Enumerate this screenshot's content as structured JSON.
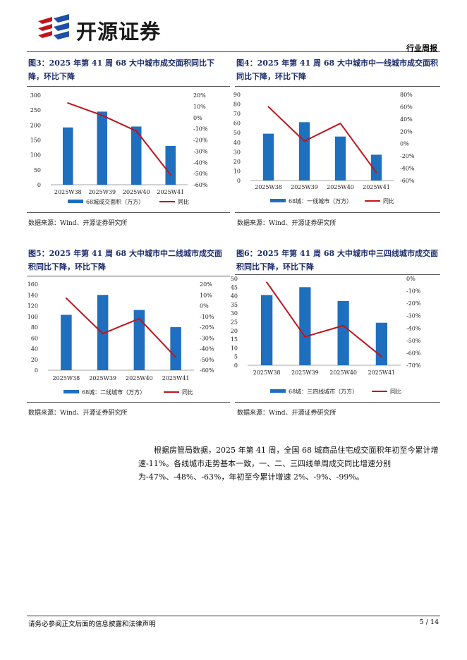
{
  "header": {
    "logo_text": "开源证券",
    "report_type": "行业周报"
  },
  "colors": {
    "bar": "#1f6fbf",
    "line": "#c0141c",
    "title": "#1b2b6b"
  },
  "charts": [
    {
      "figure_title": "图3：2025 年第 41 周 68 大中城市成交面积同比下降，环比下降",
      "source": "数据来源：Wind、开源证券研究所",
      "bar_legend": "68城成交面积（万方）",
      "line_legend": "同比"
    },
    {
      "figure_title": "图4：2025 年第 41 周 68 大中城市中一线城市成交面积同比下降，环比下降",
      "source": "数据来源：Wind、开源证券研究所",
      "bar_legend": "68城：一线城市（万方）",
      "line_legend": "同比"
    },
    {
      "figure_title": "图5：2025 年第 41 周 68 大中城市中二线城市成交面积同比下降，环比下降",
      "source": "数据来源：Wind、开源证券研究所",
      "bar_legend": "68城：二线城市（万方）",
      "line_legend": "同比"
    },
    {
      "figure_title": "图6：2025 年第 41 周 68 大中城市中三四线城市成交面积同比下降，环比下降",
      "source": "数据来源：Wind、开源证券研究所",
      "bar_legend": "68城：三四线城市（万方）",
      "line_legend": "同比"
    }
  ],
  "chart_data": [
    {
      "type": "bar",
      "categories": [
        "2025W38",
        "2025W39",
        "2025W40",
        "2025W41"
      ],
      "series": [
        {
          "name": "68城成交面积（万方）",
          "type": "bar",
          "axis": "left",
          "values": [
            192,
            245,
            195,
            130
          ]
        },
        {
          "name": "同比",
          "type": "line",
          "axis": "right",
          "values": [
            13,
            2,
            -12,
            -51
          ]
        }
      ],
      "ylim": [
        0,
        300
      ],
      "yticks": [
        "0",
        "50",
        "100",
        "150",
        "200",
        "250",
        "300"
      ],
      "y2lim": [
        -60,
        20
      ],
      "y2ticks": [
        "-60%",
        "-50%",
        "-40%",
        "-30%",
        "-20%",
        "-10%",
        "0%",
        "10%",
        "20%"
      ]
    },
    {
      "type": "bar",
      "categories": [
        "2025W38",
        "2025W39",
        "2025W40",
        "2025W41"
      ],
      "series": [
        {
          "name": "68城：一线城市（万方）",
          "type": "bar",
          "axis": "left",
          "values": [
            49,
            61,
            46,
            27
          ]
        },
        {
          "name": "同比",
          "type": "line",
          "axis": "right",
          "values": [
            60,
            4,
            33,
            -47
          ]
        }
      ],
      "ylim": [
        0,
        90
      ],
      "yticks": [
        "0",
        "10",
        "20",
        "30",
        "40",
        "50",
        "60",
        "70",
        "80",
        "90"
      ],
      "y2lim": [
        -60,
        80
      ],
      "y2ticks": [
        "-60%",
        "-40%",
        "-20%",
        "0%",
        "20%",
        "40%",
        "60%",
        "80%"
      ]
    },
    {
      "type": "bar",
      "categories": [
        "2025W38",
        "2025W39",
        "2025W40",
        "2025W41"
      ],
      "series": [
        {
          "name": "68城：二线城市（万方）",
          "type": "bar",
          "axis": "left",
          "values": [
            103,
            140,
            112,
            80
          ]
        },
        {
          "name": "同比",
          "type": "line",
          "axis": "right",
          "values": [
            7,
            -26,
            -12,
            -48
          ]
        }
      ],
      "ylim": [
        0,
        160
      ],
      "yticks": [
        "0",
        "20",
        "40",
        "60",
        "80",
        "100",
        "120",
        "140",
        "160"
      ],
      "y2lim": [
        -60,
        20
      ],
      "y2ticks": [
        "-60%",
        "-50%",
        "-40%",
        "-30%",
        "-20%",
        "-10%",
        "0%",
        "10%",
        "20%"
      ]
    },
    {
      "type": "bar",
      "categories": [
        "2025W38",
        "2025W39",
        "2025W40",
        "2025W41"
      ],
      "series": [
        {
          "name": "68城：三四线城市（万方）",
          "type": "bar",
          "axis": "left",
          "values": [
            40.5,
            45,
            37,
            24.5
          ]
        },
        {
          "name": "同比",
          "type": "line",
          "axis": "right",
          "values": [
            -3,
            -47,
            -38,
            -63
          ]
        }
      ],
      "ylim": [
        0,
        50
      ],
      "yticks": [
        "0",
        "5",
        "10",
        "15",
        "20",
        "25",
        "30",
        "35",
        "40",
        "45",
        "50"
      ],
      "y2lim": [
        -70,
        0
      ],
      "y2ticks": [
        "-70%",
        "-60%",
        "-50%",
        "-40%",
        "-30%",
        "-20%",
        "-10%",
        "0%"
      ]
    }
  ],
  "paragraph": "根据房管局数据，2025 年第 41 周，全国 68 城商品住宅成交面积年初至今累计增速-11%。各线城市走势基本一致，一、二、三四线单周成交同比增速分别为-47%、-48%、-63%，年初至今累计增速 2%、-9%、-99%。",
  "footer": {
    "disclaimer": "请务必参阅正文后面的信息披露和法律声明",
    "page": "5 / 14"
  }
}
